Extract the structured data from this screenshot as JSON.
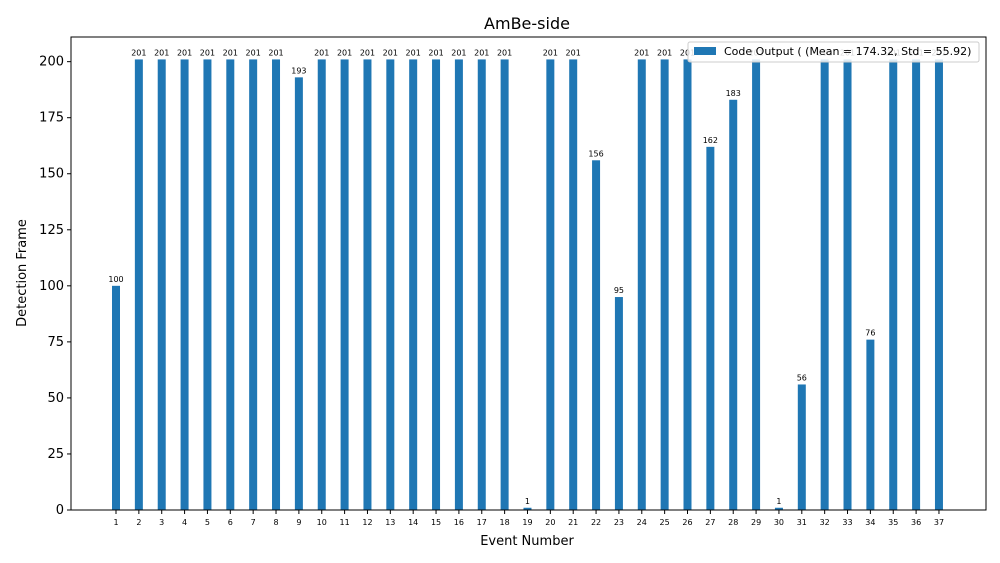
{
  "chart_data": {
    "type": "bar",
    "title": "AmBe-side",
    "xlabel": "Event Number",
    "ylabel": "Detection Frame",
    "ylim": [
      0,
      211
    ],
    "yticks": [
      0,
      25,
      50,
      75,
      100,
      125,
      150,
      175,
      200
    ],
    "categories": [
      "1",
      "2",
      "3",
      "4",
      "5",
      "6",
      "7",
      "8",
      "9",
      "10",
      "11",
      "12",
      "13",
      "14",
      "15",
      "16",
      "17",
      "18",
      "19",
      "20",
      "21",
      "22",
      "23",
      "24",
      "25",
      "26",
      "27",
      "28",
      "29",
      "30",
      "31",
      "32",
      "33",
      "34",
      "35",
      "36",
      "37"
    ],
    "series": [
      {
        "name": "Code Output ( (Mean = 174.32, Std = 55.92)",
        "color": "#1f77b4",
        "values": [
          100,
          201,
          201,
          201,
          201,
          201,
          201,
          201,
          193,
          201,
          201,
          201,
          201,
          201,
          201,
          201,
          201,
          201,
          1,
          201,
          201,
          156,
          95,
          201,
          201,
          201,
          162,
          183,
          201,
          1,
          56,
          201,
          201,
          76,
          201,
          201,
          201
        ]
      }
    ],
    "legend": {
      "label": "Code Output ( (Mean = 174.32, Std = 55.92)",
      "placement": "top-right"
    },
    "grid": false
  }
}
